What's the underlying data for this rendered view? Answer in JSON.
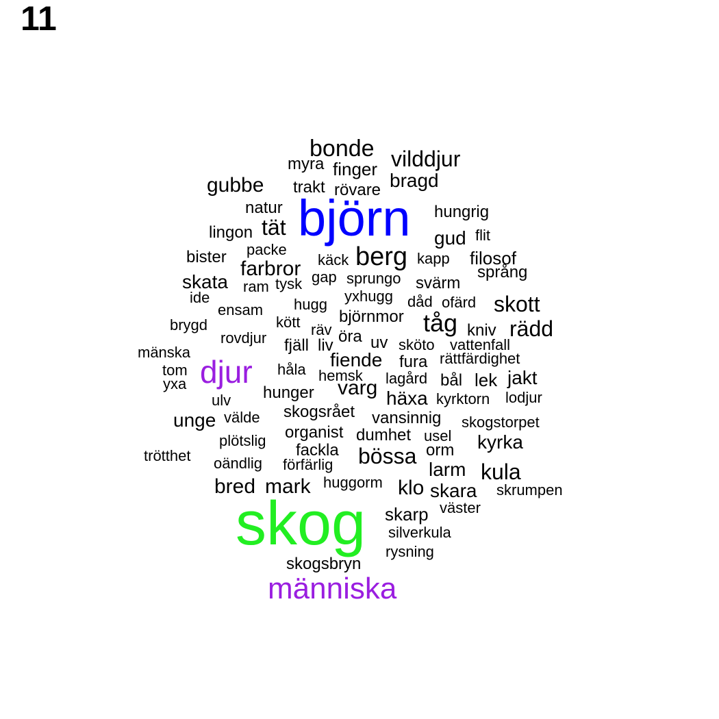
{
  "page_number": "11",
  "colors": {
    "default": "#000000",
    "blue": "#0000ff",
    "green": "#22ee22",
    "purple": "#9a1ee0"
  },
  "words": [
    {
      "text": "bonde",
      "weight": 2
    },
    {
      "text": "myra",
      "weight": 1
    },
    {
      "text": "finger",
      "weight": 1
    },
    {
      "text": "vilddjur",
      "weight": 2
    },
    {
      "text": "gubbe",
      "weight": 2
    },
    {
      "text": "trakt",
      "weight": 1
    },
    {
      "text": "rövare",
      "weight": 1
    },
    {
      "text": "bragd",
      "weight": 2
    },
    {
      "text": "natur",
      "weight": 1
    },
    {
      "text": "björn",
      "weight": 5,
      "color": "blue"
    },
    {
      "text": "hungrig",
      "weight": 1
    },
    {
      "text": "lingon",
      "weight": 1
    },
    {
      "text": "tät",
      "weight": 2
    },
    {
      "text": "flit",
      "weight": 1
    },
    {
      "text": "gud",
      "weight": 2
    },
    {
      "text": "bister",
      "weight": 1
    },
    {
      "text": "packe",
      "weight": 1
    },
    {
      "text": "käck",
      "weight": 1
    },
    {
      "text": "berg",
      "weight": 3
    },
    {
      "text": "kapp",
      "weight": 1
    },
    {
      "text": "filosof",
      "weight": 1
    },
    {
      "text": "farbror",
      "weight": 2
    },
    {
      "text": "språng",
      "weight": 1
    },
    {
      "text": "skata",
      "weight": 2
    },
    {
      "text": "ram",
      "weight": 1
    },
    {
      "text": "tysk",
      "weight": 1
    },
    {
      "text": "gap",
      "weight": 1
    },
    {
      "text": "sprungo",
      "weight": 1
    },
    {
      "text": "svärm",
      "weight": 1
    },
    {
      "text": "ide",
      "weight": 1
    },
    {
      "text": "yxhugg",
      "weight": 1
    },
    {
      "text": "hugg",
      "weight": 1
    },
    {
      "text": "dåd",
      "weight": 1
    },
    {
      "text": "ofärd",
      "weight": 1
    },
    {
      "text": "skott",
      "weight": 2
    },
    {
      "text": "ensam",
      "weight": 1
    },
    {
      "text": "björnmor",
      "weight": 1
    },
    {
      "text": "brygd",
      "weight": 1
    },
    {
      "text": "kött",
      "weight": 1
    },
    {
      "text": "tåg",
      "weight": 2
    },
    {
      "text": "räv",
      "weight": 1
    },
    {
      "text": "kniv",
      "weight": 1
    },
    {
      "text": "rädd",
      "weight": 2
    },
    {
      "text": "rovdjur",
      "weight": 1
    },
    {
      "text": "öra",
      "weight": 1
    },
    {
      "text": "fjäll",
      "weight": 1
    },
    {
      "text": "liv",
      "weight": 1
    },
    {
      "text": "uv",
      "weight": 1
    },
    {
      "text": "sköto",
      "weight": 1
    },
    {
      "text": "vattenfall",
      "weight": 1
    },
    {
      "text": "mänska",
      "weight": 1
    },
    {
      "text": "fiende",
      "weight": 2
    },
    {
      "text": "rättfärdighet",
      "weight": 1
    },
    {
      "text": "fura",
      "weight": 1
    },
    {
      "text": "djur",
      "weight": 4,
      "color": "purple"
    },
    {
      "text": "hemsk",
      "weight": 1
    },
    {
      "text": "håla",
      "weight": 1
    },
    {
      "text": "tom",
      "weight": 1
    },
    {
      "text": "lagård",
      "weight": 1
    },
    {
      "text": "bål",
      "weight": 1
    },
    {
      "text": "lek",
      "weight": 1
    },
    {
      "text": "jakt",
      "weight": 2
    },
    {
      "text": "varg",
      "weight": 2
    },
    {
      "text": "yxa",
      "weight": 1
    },
    {
      "text": "hunger",
      "weight": 1
    },
    {
      "text": "häxa",
      "weight": 2
    },
    {
      "text": "kyrktorn",
      "weight": 1
    },
    {
      "text": "lodjur",
      "weight": 1
    },
    {
      "text": "ulv",
      "weight": 1
    },
    {
      "text": "skogsrået",
      "weight": 1
    },
    {
      "text": "unge",
      "weight": 2
    },
    {
      "text": "välde",
      "weight": 1
    },
    {
      "text": "vansinnig",
      "weight": 1
    },
    {
      "text": "skogstorpet",
      "weight": 1
    },
    {
      "text": "organist",
      "weight": 1
    },
    {
      "text": "dumhet",
      "weight": 1
    },
    {
      "text": "usel",
      "weight": 1
    },
    {
      "text": "plötslig",
      "weight": 1
    },
    {
      "text": "kyrka",
      "weight": 2
    },
    {
      "text": "fackla",
      "weight": 1
    },
    {
      "text": "orm",
      "weight": 1
    },
    {
      "text": "trötthet",
      "weight": 1
    },
    {
      "text": "bössa",
      "weight": 2
    },
    {
      "text": "oändlig",
      "weight": 1
    },
    {
      "text": "förfärlig",
      "weight": 1
    },
    {
      "text": "larm",
      "weight": 2
    },
    {
      "text": "kula",
      "weight": 2
    },
    {
      "text": "huggorm",
      "weight": 1
    },
    {
      "text": "bred",
      "weight": 2
    },
    {
      "text": "mark",
      "weight": 2
    },
    {
      "text": "klo",
      "weight": 2
    },
    {
      "text": "skara",
      "weight": 2
    },
    {
      "text": "skrumpen",
      "weight": 1
    },
    {
      "text": "väster",
      "weight": 1
    },
    {
      "text": "skog",
      "weight": 6,
      "color": "green"
    },
    {
      "text": "skarp",
      "weight": 2
    },
    {
      "text": "silverkula",
      "weight": 1
    },
    {
      "text": "rysning",
      "weight": 1
    },
    {
      "text": "skogsbryn",
      "weight": 1
    },
    {
      "text": "människa",
      "weight": 4,
      "color": "purple"
    }
  ]
}
